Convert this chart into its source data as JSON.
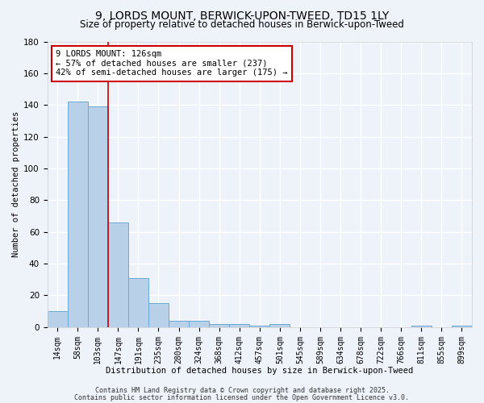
{
  "title1": "9, LORDS MOUNT, BERWICK-UPON-TWEED, TD15 1LY",
  "title2": "Size of property relative to detached houses in Berwick-upon-Tweed",
  "xlabel": "Distribution of detached houses by size in Berwick-upon-Tweed",
  "ylabel": "Number of detached properties",
  "bin_labels": [
    "14sqm",
    "58sqm",
    "103sqm",
    "147sqm",
    "191sqm",
    "235sqm",
    "280sqm",
    "324sqm",
    "368sqm",
    "412sqm",
    "457sqm",
    "501sqm",
    "545sqm",
    "589sqm",
    "634sqm",
    "678sqm",
    "722sqm",
    "766sqm",
    "811sqm",
    "855sqm",
    "899sqm"
  ],
  "bar_values": [
    10,
    142,
    139,
    66,
    31,
    15,
    4,
    4,
    2,
    2,
    1,
    2,
    0,
    0,
    0,
    0,
    0,
    0,
    1,
    0,
    1
  ],
  "bar_color": "#b8d0e8",
  "bar_edge_color": "#6aaad4",
  "red_line_x": 2.5,
  "annotation_line1": "9 LORDS MOUNT: 126sqm",
  "annotation_line2": "← 57% of detached houses are smaller (237)",
  "annotation_line3": "42% of semi-detached houses are larger (175) →",
  "annotation_box_color": "#ffffff",
  "annotation_box_edge_color": "#cc0000",
  "footer1": "Contains HM Land Registry data © Crown copyright and database right 2025.",
  "footer2": "Contains public sector information licensed under the Open Government Licence v3.0.",
  "ylim": [
    0,
    180
  ],
  "yticks": [
    0,
    20,
    40,
    60,
    80,
    100,
    120,
    140,
    160,
    180
  ],
  "bg_color": "#eef2f9",
  "grid_color": "#ffffff",
  "title1_fontsize": 10,
  "title2_fontsize": 8.5,
  "annot_fontsize": 7.5,
  "xlabel_fontsize": 7.5,
  "ylabel_fontsize": 7.5,
  "tick_fontsize": 7,
  "footer_fontsize": 6
}
